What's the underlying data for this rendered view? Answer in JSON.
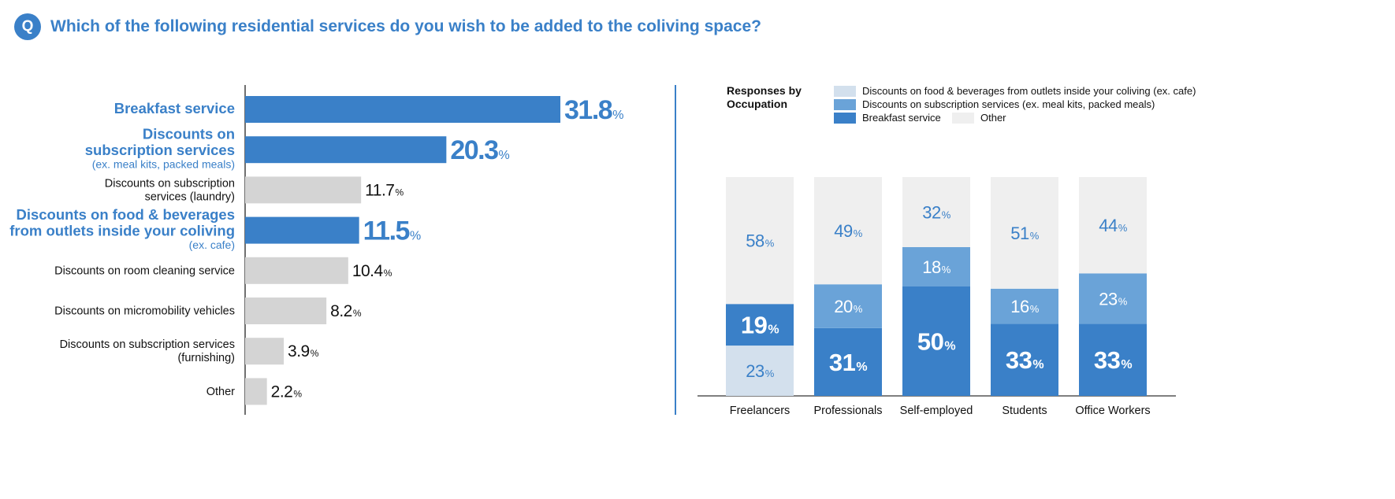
{
  "question": {
    "badge": "Q",
    "text": "Which of the following residential services do you wish to be added to the coliving space?"
  },
  "colors": {
    "primary": "#3a80c8",
    "medium": "#6aa3d8",
    "light": "#d3e0ed",
    "gray_bar": "#d4d4d4",
    "other": "#efefef",
    "text": "#111111"
  },
  "chart_data": [
    {
      "type": "bar",
      "orientation": "horizontal",
      "title": "",
      "unit": "%",
      "xlim": [
        0,
        31.8
      ],
      "categories": [
        {
          "lines": [
            "Breakfast service"
          ],
          "sub": "",
          "value": 31.8,
          "highlight": true
        },
        {
          "lines": [
            "Discounts on",
            "subscription services"
          ],
          "sub": "(ex. meal kits, packed meals)",
          "value": 20.3,
          "highlight": true
        },
        {
          "lines": [
            "Discounts on subscription",
            "services (laundry)"
          ],
          "sub": "",
          "value": 11.7,
          "highlight": false
        },
        {
          "lines": [
            "Discounts on food & beverages",
            "from outlets inside your coliving"
          ],
          "sub": "(ex. cafe)",
          "value": 11.5,
          "highlight": true
        },
        {
          "lines": [
            "Discounts on room cleaning service"
          ],
          "sub": "",
          "value": 10.4,
          "highlight": false
        },
        {
          "lines": [
            "Discounts on micromobility vehicles"
          ],
          "sub": "",
          "value": 8.2,
          "highlight": false
        },
        {
          "lines": [
            "Discounts on subscription services",
            "(furnishing)"
          ],
          "sub": "",
          "value": 3.9,
          "highlight": false
        },
        {
          "lines": [
            "Other"
          ],
          "sub": "",
          "value": 2.2,
          "highlight": false
        }
      ]
    },
    {
      "type": "bar",
      "stacked": true,
      "title": "Responses by Occupation",
      "title_lines": [
        "Responses by",
        "Occupation"
      ],
      "unit": "%",
      "ylim": [
        0,
        100
      ],
      "categories": [
        "Freelancers",
        "Professionals",
        "Self-employed",
        "Students",
        "Office Workers"
      ],
      "series": [
        {
          "name": "Discounts on food & beverages from outlets inside your coliving (ex. cafe)",
          "color": "#d3e0ed",
          "values": [
            23,
            0,
            0,
            0,
            0
          ]
        },
        {
          "name": "Breakfast service",
          "color": "#3a80c8",
          "values": [
            19,
            31,
            50,
            33,
            33
          ]
        },
        {
          "name": "Discounts on subscription services (ex. meal kits, packed meals)",
          "color": "#6aa3d8",
          "values": [
            0,
            20,
            18,
            16,
            23
          ]
        },
        {
          "name": "Other",
          "color": "#efefef",
          "values": [
            58,
            49,
            32,
            51,
            44
          ]
        }
      ],
      "legend": [
        {
          "label": "Discounts on food & beverages from outlets inside your coliving (ex. cafe)",
          "color": "#d3e0ed"
        },
        {
          "label": "Discounts on subscription services (ex. meal kits, packed meals)",
          "color": "#6aa3d8"
        },
        {
          "label": "Breakfast service",
          "color": "#3a80c8"
        },
        {
          "label": "Other",
          "color": "#efefef"
        }
      ]
    }
  ]
}
